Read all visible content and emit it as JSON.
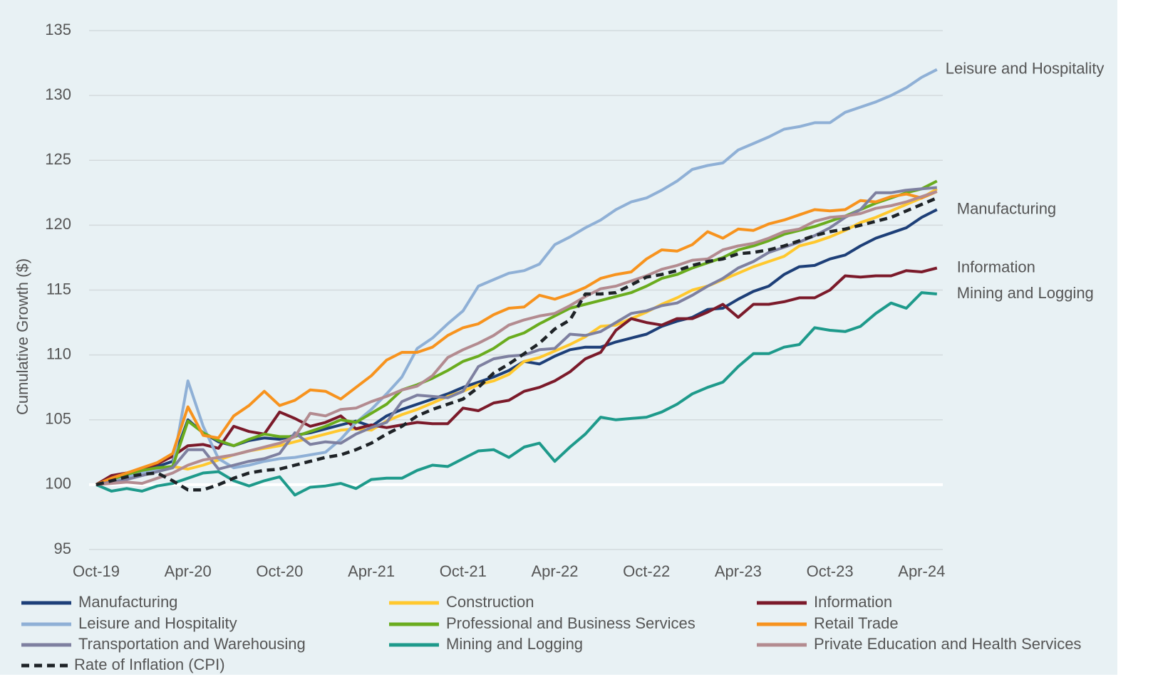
{
  "chart_data": {
    "type": "line",
    "ylabel": "Cumulative Growth ($)",
    "ylim": [
      95,
      135
    ],
    "yticks": [
      95,
      100,
      105,
      110,
      115,
      120,
      125,
      130,
      135
    ],
    "baseline": 100,
    "grid": true,
    "categories": [
      "Oct-19",
      null,
      null,
      null,
      null,
      null,
      "Apr-20",
      null,
      null,
      null,
      null,
      null,
      "Oct-20",
      null,
      null,
      null,
      null,
      null,
      "Apr-21",
      null,
      null,
      null,
      null,
      null,
      "Oct-21",
      null,
      null,
      null,
      null,
      null,
      "Apr-22",
      null,
      null,
      null,
      null,
      null,
      "Oct-22",
      null,
      null,
      null,
      null,
      null,
      "Apr-23",
      null,
      null,
      null,
      null,
      null,
      "Oct-23",
      null,
      null,
      null,
      null,
      null,
      "Apr-24",
      null
    ],
    "end_labels": [
      "Leisure and Hospitality",
      "Manufacturing",
      "Information",
      "Mining and Logging"
    ],
    "series": [
      {
        "name": "Manufacturing",
        "color": "#1d3f78",
        "values": [
          100,
          100.5,
          100.8,
          101.1,
          101.4,
          101.8,
          105.0,
          104.0,
          103.3,
          103.0,
          103.4,
          103.6,
          103.5,
          103.8,
          104.0,
          104.3,
          104.6,
          104.9,
          104.5,
          105.3,
          105.8,
          106.2,
          106.6,
          107.0,
          107.5,
          107.9,
          108.3,
          108.8,
          109.5,
          109.3,
          109.9,
          110.4,
          110.6,
          110.6,
          111.0,
          111.3,
          111.6,
          112.2,
          112.6,
          112.9,
          113.5,
          113.6,
          114.3,
          114.9,
          115.3,
          116.2,
          116.8,
          116.9,
          117.4,
          117.7,
          118.4,
          119.0,
          119.4,
          119.8,
          120.6,
          121.2
        ]
      },
      {
        "name": "Construction",
        "color": "#ffc82e",
        "values": [
          100,
          100.3,
          100.6,
          100.9,
          101.2,
          101.4,
          101.2,
          101.5,
          101.9,
          102.3,
          102.6,
          102.8,
          103.0,
          103.3,
          103.6,
          103.9,
          104.2,
          104.3,
          104.2,
          104.9,
          105.4,
          105.8,
          106.3,
          106.8,
          107.2,
          107.7,
          108.0,
          108.5,
          109.5,
          109.8,
          110.3,
          110.8,
          111.4,
          112.2,
          112.3,
          112.8,
          113.3,
          113.9,
          114.4,
          115.0,
          115.3,
          115.8,
          116.3,
          116.8,
          117.2,
          117.6,
          118.4,
          118.7,
          119.1,
          119.6,
          120.2,
          120.6,
          121.1,
          121.6,
          122.1,
          122.8
        ]
      },
      {
        "name": "Information",
        "color": "#7b1a2a",
        "values": [
          100,
          100.7,
          100.9,
          101.2,
          101.6,
          102.2,
          103.0,
          103.1,
          102.8,
          104.5,
          104.1,
          103.9,
          105.6,
          105.1,
          104.5,
          104.8,
          105.3,
          104.3,
          104.6,
          104.4,
          104.6,
          104.8,
          104.7,
          104.7,
          105.9,
          105.7,
          106.3,
          106.5,
          107.2,
          107.5,
          108.0,
          108.7,
          109.7,
          110.2,
          111.9,
          112.8,
          112.5,
          112.3,
          112.8,
          112.8,
          113.3,
          113.9,
          112.9,
          113.9,
          113.9,
          114.1,
          114.4,
          114.4,
          115.0,
          116.1,
          116.0,
          116.1,
          116.1,
          116.5,
          116.4,
          116.7
        ]
      },
      {
        "name": "Leisure and Hospitality",
        "color": "#8fb0d6",
        "values": [
          100,
          100.3,
          100.6,
          100.9,
          101.2,
          101.4,
          108.0,
          104.5,
          102.0,
          101.3,
          101.5,
          101.8,
          102.0,
          102.1,
          102.3,
          102.5,
          103.5,
          104.8,
          105.8,
          107.0,
          108.3,
          110.5,
          111.3,
          112.4,
          113.4,
          115.3,
          115.8,
          116.3,
          116.5,
          117.0,
          118.5,
          119.1,
          119.8,
          120.4,
          121.2,
          121.8,
          122.1,
          122.7,
          123.4,
          124.3,
          124.6,
          124.8,
          125.8,
          126.3,
          126.8,
          127.4,
          127.6,
          127.9,
          127.9,
          128.7,
          129.1,
          129.5,
          130.0,
          130.6,
          131.4,
          132.0
        ]
      },
      {
        "name": "Professional and Business Services",
        "color": "#6aac1e",
        "values": [
          100,
          100.4,
          100.8,
          101.1,
          101.3,
          101.4,
          104.9,
          104.0,
          103.4,
          103.0,
          103.5,
          103.9,
          103.7,
          103.7,
          104.1,
          104.5,
          105.0,
          104.8,
          105.5,
          106.2,
          107.3,
          107.7,
          108.2,
          108.8,
          109.5,
          109.9,
          110.5,
          111.3,
          111.7,
          112.4,
          113.0,
          113.6,
          113.9,
          114.2,
          114.5,
          114.8,
          115.3,
          115.9,
          116.2,
          116.7,
          117.1,
          117.5,
          118.1,
          118.4,
          118.8,
          119.3,
          119.6,
          119.9,
          120.3,
          120.7,
          121.2,
          121.7,
          122.1,
          122.5,
          122.8,
          123.4
        ]
      },
      {
        "name": "Retail Trade",
        "color": "#f7931e",
        "values": [
          100,
          100.5,
          100.9,
          101.3,
          101.7,
          102.4,
          106.0,
          103.8,
          103.6,
          105.3,
          106.1,
          107.2,
          106.1,
          106.5,
          107.3,
          107.2,
          106.6,
          107.5,
          108.4,
          109.6,
          110.2,
          110.2,
          110.6,
          111.5,
          112.1,
          112.4,
          113.1,
          113.6,
          113.7,
          114.6,
          114.3,
          114.7,
          115.2,
          115.9,
          116.2,
          116.4,
          117.4,
          118.1,
          118.0,
          118.5,
          119.5,
          119.0,
          119.7,
          119.6,
          120.1,
          120.4,
          120.8,
          121.2,
          121.1,
          121.2,
          121.9,
          121.8,
          122.2,
          122.4,
          122.1,
          122.6
        ]
      },
      {
        "name": "Transportation and Warehousing",
        "color": "#7e80a0",
        "values": [
          100,
          100.2,
          100.4,
          100.7,
          101.0,
          101.3,
          102.7,
          102.7,
          101.2,
          101.5,
          101.8,
          102.0,
          102.4,
          104.0,
          103.1,
          103.3,
          103.2,
          103.9,
          104.4,
          104.8,
          106.4,
          106.9,
          106.8,
          106.7,
          107.2,
          109.1,
          109.7,
          109.9,
          110.0,
          110.4,
          110.5,
          111.6,
          111.5,
          111.8,
          112.5,
          113.2,
          113.4,
          113.8,
          114.0,
          114.6,
          115.3,
          115.9,
          116.7,
          117.2,
          117.9,
          118.3,
          118.7,
          119.2,
          119.8,
          120.6,
          121.2,
          122.5,
          122.5,
          122.7,
          122.8,
          122.9
        ]
      },
      {
        "name": "Mining and Logging",
        "color": "#1e9a8b",
        "values": [
          100,
          99.5,
          99.7,
          99.5,
          99.9,
          100.1,
          100.5,
          100.9,
          101.0,
          100.3,
          99.9,
          100.3,
          100.6,
          99.2,
          99.8,
          99.9,
          100.1,
          99.7,
          100.4,
          100.5,
          100.5,
          101.1,
          101.5,
          101.4,
          102.0,
          102.6,
          102.7,
          102.1,
          102.9,
          103.2,
          101.8,
          102.9,
          103.9,
          105.2,
          105.0,
          105.1,
          105.2,
          105.6,
          106.2,
          107.0,
          107.5,
          107.9,
          109.1,
          110.1,
          110.1,
          110.6,
          110.8,
          112.1,
          111.9,
          111.8,
          112.2,
          113.2,
          114.0,
          113.6,
          114.8,
          114.7
        ]
      },
      {
        "name": "Private Education and Health Services",
        "color": "#b38b90",
        "values": [
          100,
          100.1,
          100.2,
          100.1,
          100.5,
          100.9,
          101.5,
          101.9,
          102.1,
          102.3,
          102.6,
          102.9,
          103.2,
          103.7,
          105.5,
          105.3,
          105.8,
          105.9,
          106.4,
          106.8,
          107.3,
          107.6,
          108.4,
          109.8,
          110.4,
          110.9,
          111.5,
          112.3,
          112.7,
          113.0,
          113.2,
          113.8,
          114.5,
          115.1,
          115.3,
          115.7,
          116.1,
          116.6,
          116.9,
          117.3,
          117.4,
          118.1,
          118.4,
          118.6,
          119.0,
          119.5,
          119.7,
          120.3,
          120.6,
          120.7,
          120.9,
          121.3,
          121.5,
          121.8,
          122.2,
          122.6
        ]
      },
      {
        "name": "Rate of Inflation (CPI)",
        "color": "#1e2327",
        "dash": true,
        "values": [
          100,
          100.3,
          100.6,
          100.8,
          100.9,
          100.3,
          99.6,
          99.6,
          100.0,
          100.5,
          100.9,
          101.1,
          101.2,
          101.5,
          101.8,
          102.1,
          102.3,
          102.7,
          103.2,
          103.9,
          104.5,
          105.3,
          105.8,
          106.2,
          106.6,
          107.5,
          108.6,
          109.3,
          110.1,
          110.9,
          112.0,
          112.7,
          114.7,
          114.7,
          114.8,
          115.4,
          116.0,
          116.2,
          116.5,
          116.9,
          117.2,
          117.4,
          117.8,
          117.9,
          118.1,
          118.4,
          118.8,
          119.2,
          119.5,
          119.7,
          120.0,
          120.3,
          120.6,
          121.1,
          121.6,
          122.1
        ]
      }
    ]
  }
}
